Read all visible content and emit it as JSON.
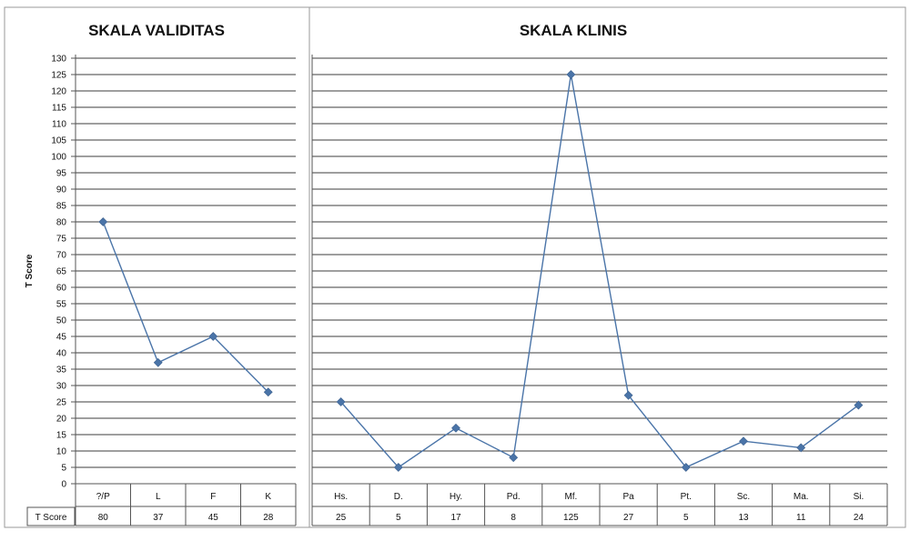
{
  "chart_data": [
    {
      "type": "line",
      "title": "SKALA VALIDITAS",
      "ylabel": "T Score",
      "ylim": [
        0,
        130
      ],
      "ytick_step": 5,
      "grid": true,
      "categories": [
        "?/P",
        "L",
        "F",
        "K"
      ],
      "series": [
        {
          "name": "T Score",
          "values": [
            80,
            37,
            45,
            28
          ]
        }
      ],
      "color": "#4a74a8"
    },
    {
      "type": "line",
      "title": "SKALA KLINIS",
      "ylim": [
        0,
        130
      ],
      "ytick_step": 5,
      "grid": true,
      "categories": [
        "Hs.",
        "D.",
        "Hy.",
        "Pd.",
        "Mf.",
        "Pa",
        "Pt.",
        "Sc.",
        "Ma.",
        "Si."
      ],
      "series": [
        {
          "name": "T Score",
          "values": [
            25,
            5,
            17,
            8,
            125,
            27,
            5,
            13,
            11,
            24
          ]
        }
      ],
      "color": "#4a74a8"
    }
  ],
  "table": {
    "row_label": "T Score"
  }
}
